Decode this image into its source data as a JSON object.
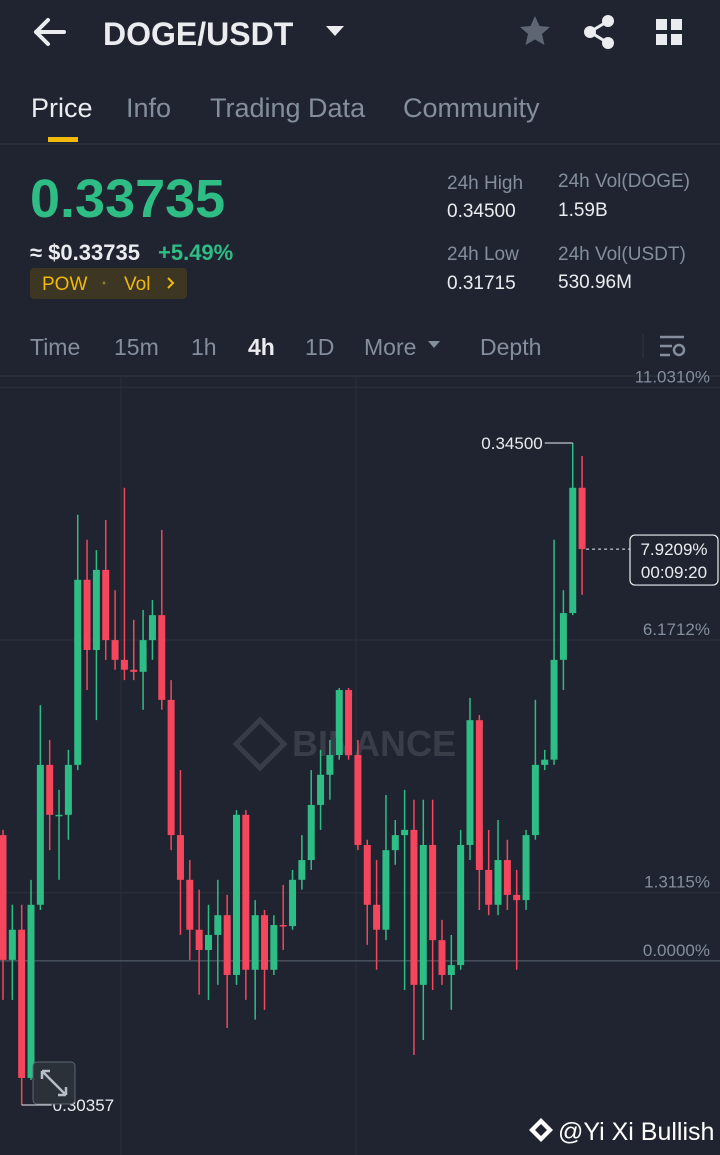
{
  "header": {
    "symbol": "DOGE/USDT"
  },
  "tabs": [
    "Price",
    "Info",
    "Trading Data",
    "Community"
  ],
  "quote": {
    "last": "0.33735",
    "approx": "≈ $0.33735",
    "change": "+5.49%",
    "tags": [
      "POW",
      "Vol"
    ]
  },
  "stats": [
    {
      "label": "24h High",
      "value": "0.34500"
    },
    {
      "label": "24h Vol(DOGE)",
      "value": "1.59B"
    },
    {
      "label": "24h Low",
      "value": "0.31715"
    },
    {
      "label": "24h Vol(USDT)",
      "value": "530.96M"
    }
  ],
  "intervals": [
    "Time",
    "15m",
    "1h",
    "4h",
    "1D",
    "More",
    "Depth"
  ],
  "chart_data": {
    "type": "candlestick",
    "ylim": [
      -3.54,
      11.23
    ],
    "yticks": [
      {
        "value": 11.031,
        "label": "11.0310%"
      },
      {
        "value": 6.1712,
        "label": "6.1712%"
      },
      {
        "value": 1.3115,
        "label": "1.3115%"
      },
      {
        "value": 0,
        "label": "0.0000%"
      }
    ],
    "up_color": "#2ebd85",
    "down_color": "#f6465d",
    "open": [
      2.42,
      0.02,
      0.6,
      -2.25,
      1.08,
      3.77,
      2.81,
      2.81,
      3.77,
      7.33,
      5.98,
      7.52,
      6.17,
      5.79,
      5.6,
      5.56,
      6.17,
      6.65,
      5.02,
      2.42,
      1.56,
      0.6,
      0.21,
      0.5,
      0.88,
      -0.27,
      2.81,
      -0.17,
      0.88,
      -0.17,
      0.69,
      0.67,
      1.56,
      1.94,
      3.0,
      3.58,
      3.96,
      5.21,
      3.96,
      2.23,
      1.08,
      0.6,
      2.13,
      2.42,
      2.52,
      -0.46,
      2.23,
      0.4,
      -0.27,
      -0.08,
      2.23,
      4.63,
      1.75,
      1.08,
      1.94,
      1.27,
      1.17,
      2.42,
      3.77,
      3.87,
      5.79,
      6.69,
      9.1
    ],
    "high": [
      2.52,
      1.08,
      1.08,
      1.56,
      4.92,
      4.25,
      3.29,
      4.06,
      8.58,
      8.1,
      7.9,
      8.48,
      7.13,
      9.1,
      6.56,
      6.75,
      6.94,
      8.29,
      5.4,
      3.67,
      1.94,
      1.37,
      1.08,
      1.56,
      1.27,
      2.9,
      2.9,
      1.17,
      0.98,
      0.88,
      1.46,
      1.75,
      2.42,
      3.67,
      4.06,
      4.25,
      5.25,
      5.25,
      4.25,
      2.33,
      1.94,
      3.19,
      2.71,
      3.29,
      3.1,
      3.1,
      3.1,
      0.79,
      0.5,
      2.52,
      5.06,
      4.73,
      2.52,
      2.71,
      2.33,
      1.75,
      2.52,
      5.02,
      4.06,
      8.1,
      7.13,
      9.96,
      9.71
    ],
    "low": [
      -0.75,
      -0.75,
      -2.77,
      -2.29,
      0.98,
      2.13,
      1.56,
      2.33,
      3.67,
      5.21,
      4.63,
      5.79,
      5.6,
      5.4,
      5.4,
      4.83,
      5.79,
      4.83,
      2.13,
      0.5,
      0.02,
      -0.65,
      -0.75,
      -0.46,
      -1.29,
      -0.46,
      -0.75,
      -1.13,
      -0.94,
      -0.27,
      0.21,
      0.6,
      1.37,
      1.75,
      2.52,
      3.1,
      3.87,
      3.87,
      2.13,
      0.31,
      -0.17,
      0.4,
      1.85,
      -0.56,
      -1.81,
      -1.52,
      -0.56,
      -0.46,
      -0.94,
      -0.17,
      1.94,
      0.98,
      0.88,
      0.88,
      0.98,
      -0.17,
      0.98,
      2.33,
      3.67,
      3.77,
      5.21,
      6.65,
      7.04
    ],
    "close": [
      0.02,
      0.6,
      -2.25,
      1.08,
      3.77,
      2.81,
      2.81,
      3.77,
      7.33,
      5.98,
      7.52,
      6.17,
      5.79,
      5.6,
      5.56,
      6.17,
      6.65,
      5.02,
      2.42,
      1.56,
      0.6,
      0.21,
      0.5,
      0.88,
      -0.27,
      2.81,
      -0.17,
      0.88,
      -0.17,
      0.69,
      0.67,
      1.56,
      1.94,
      3.0,
      3.58,
      3.96,
      5.21,
      3.96,
      2.23,
      1.08,
      0.6,
      2.13,
      2.42,
      2.52,
      -0.46,
      2.23,
      0.4,
      -0.27,
      -0.08,
      2.23,
      4.63,
      1.75,
      1.08,
      1.94,
      1.27,
      1.17,
      2.42,
      3.77,
      3.87,
      5.79,
      6.69,
      9.1,
      7.92
    ],
    "max_label": "0.34500",
    "min_label": "0.30357",
    "current": {
      "value": 7.9209,
      "label": "7.9209%",
      "countdown": "00:09:20"
    },
    "watermark": "BINANCE"
  },
  "credit": "@Yi Xi Bullish"
}
